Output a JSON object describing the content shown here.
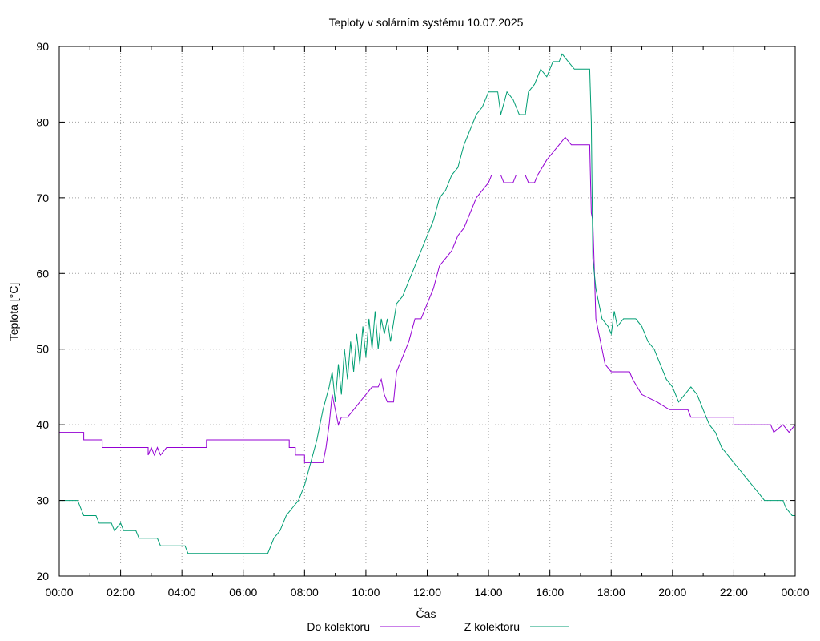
{
  "chart_data": {
    "type": "line",
    "title": "Teploty v solárním systému 10.07.2025",
    "xlabel": "Čas",
    "ylabel": "Teplota [°C]",
    "xlim": [
      0,
      24
    ],
    "ylim": [
      20,
      90
    ],
    "grid": true,
    "legend_position": "bottom",
    "x_ticks": [
      0,
      2,
      4,
      6,
      8,
      10,
      12,
      14,
      16,
      18,
      20,
      22,
      24
    ],
    "x_tick_labels": [
      "00:00",
      "02:00",
      "04:00",
      "06:00",
      "08:00",
      "10:00",
      "12:00",
      "14:00",
      "16:00",
      "18:00",
      "20:00",
      "22:00",
      "00:00"
    ],
    "y_ticks": [
      20,
      30,
      40,
      50,
      60,
      70,
      80,
      90
    ],
    "y_tick_labels": [
      "20",
      "30",
      "40",
      "50",
      "60",
      "70",
      "80",
      "90"
    ],
    "series": [
      {
        "name": "Do kolektoru",
        "color": "#9400d3",
        "points": [
          [
            0.0,
            39
          ],
          [
            0.8,
            39
          ],
          [
            0.8,
            38
          ],
          [
            1.4,
            38
          ],
          [
            1.4,
            37
          ],
          [
            2.9,
            37
          ],
          [
            2.9,
            36
          ],
          [
            3.0,
            37
          ],
          [
            3.1,
            36
          ],
          [
            3.2,
            37
          ],
          [
            3.3,
            36
          ],
          [
            3.5,
            37
          ],
          [
            4.8,
            37
          ],
          [
            4.8,
            38
          ],
          [
            7.5,
            38
          ],
          [
            7.5,
            37
          ],
          [
            7.7,
            37
          ],
          [
            7.7,
            36
          ],
          [
            8.0,
            36
          ],
          [
            8.0,
            35
          ],
          [
            8.6,
            35
          ],
          [
            8.7,
            37
          ],
          [
            8.8,
            40
          ],
          [
            8.9,
            44
          ],
          [
            9.1,
            40
          ],
          [
            9.2,
            41
          ],
          [
            9.4,
            41
          ],
          [
            9.6,
            42
          ],
          [
            9.8,
            43
          ],
          [
            10.0,
            44
          ],
          [
            10.2,
            45
          ],
          [
            10.4,
            45
          ],
          [
            10.5,
            46
          ],
          [
            10.6,
            44
          ],
          [
            10.7,
            43
          ],
          [
            10.9,
            43
          ],
          [
            11.0,
            47
          ],
          [
            11.2,
            49
          ],
          [
            11.4,
            51
          ],
          [
            11.6,
            54
          ],
          [
            11.8,
            54
          ],
          [
            12.0,
            56
          ],
          [
            12.2,
            58
          ],
          [
            12.4,
            61
          ],
          [
            12.6,
            62
          ],
          [
            12.8,
            63
          ],
          [
            13.0,
            65
          ],
          [
            13.2,
            66
          ],
          [
            13.4,
            68
          ],
          [
            13.6,
            70
          ],
          [
            13.8,
            71
          ],
          [
            14.0,
            72
          ],
          [
            14.1,
            73
          ],
          [
            14.4,
            73
          ],
          [
            14.5,
            72
          ],
          [
            14.8,
            72
          ],
          [
            14.9,
            73
          ],
          [
            15.2,
            73
          ],
          [
            15.3,
            72
          ],
          [
            15.5,
            72
          ],
          [
            15.6,
            73
          ],
          [
            15.9,
            75
          ],
          [
            16.1,
            76
          ],
          [
            16.3,
            77
          ],
          [
            16.5,
            78
          ],
          [
            16.7,
            77
          ],
          [
            17.3,
            77
          ],
          [
            17.35,
            68
          ],
          [
            17.4,
            67
          ],
          [
            17.5,
            54
          ],
          [
            17.7,
            50
          ],
          [
            17.8,
            48
          ],
          [
            18.0,
            47
          ],
          [
            18.6,
            47
          ],
          [
            18.7,
            46
          ],
          [
            19.0,
            44
          ],
          [
            19.5,
            43
          ],
          [
            19.9,
            42
          ],
          [
            20.5,
            42
          ],
          [
            20.6,
            41
          ],
          [
            22.0,
            41
          ],
          [
            22.0,
            40
          ],
          [
            23.2,
            40
          ],
          [
            23.3,
            39
          ],
          [
            23.6,
            40
          ],
          [
            23.8,
            39
          ],
          [
            24.0,
            40
          ]
        ]
      },
      {
        "name": "Z kolektoru",
        "color": "#009e73",
        "points": [
          [
            0.0,
            30
          ],
          [
            0.6,
            30
          ],
          [
            0.8,
            28
          ],
          [
            1.2,
            28
          ],
          [
            1.3,
            27
          ],
          [
            1.7,
            27
          ],
          [
            1.8,
            26
          ],
          [
            2.0,
            27
          ],
          [
            2.1,
            26
          ],
          [
            2.5,
            26
          ],
          [
            2.6,
            25
          ],
          [
            3.2,
            25
          ],
          [
            3.3,
            24
          ],
          [
            4.1,
            24
          ],
          [
            4.2,
            23
          ],
          [
            6.8,
            23
          ],
          [
            7.0,
            25
          ],
          [
            7.2,
            26
          ],
          [
            7.4,
            28
          ],
          [
            7.6,
            29
          ],
          [
            7.8,
            30
          ],
          [
            8.0,
            32
          ],
          [
            8.2,
            35
          ],
          [
            8.4,
            38
          ],
          [
            8.6,
            42
          ],
          [
            8.8,
            45
          ],
          [
            8.9,
            47
          ],
          [
            9.0,
            43
          ],
          [
            9.1,
            48
          ],
          [
            9.2,
            44
          ],
          [
            9.3,
            50
          ],
          [
            9.4,
            46
          ],
          [
            9.5,
            51
          ],
          [
            9.6,
            47
          ],
          [
            9.7,
            52
          ],
          [
            9.8,
            48
          ],
          [
            9.9,
            53
          ],
          [
            10.0,
            49
          ],
          [
            10.1,
            54
          ],
          [
            10.2,
            50
          ],
          [
            10.3,
            55
          ],
          [
            10.4,
            50
          ],
          [
            10.5,
            54
          ],
          [
            10.6,
            52
          ],
          [
            10.7,
            54
          ],
          [
            10.8,
            51
          ],
          [
            11.0,
            56
          ],
          [
            11.2,
            57
          ],
          [
            11.4,
            59
          ],
          [
            11.6,
            61
          ],
          [
            11.8,
            63
          ],
          [
            12.0,
            65
          ],
          [
            12.2,
            67
          ],
          [
            12.4,
            70
          ],
          [
            12.6,
            71
          ],
          [
            12.8,
            73
          ],
          [
            13.0,
            74
          ],
          [
            13.2,
            77
          ],
          [
            13.4,
            79
          ],
          [
            13.6,
            81
          ],
          [
            13.8,
            82
          ],
          [
            14.0,
            84
          ],
          [
            14.3,
            84
          ],
          [
            14.4,
            81
          ],
          [
            14.6,
            84
          ],
          [
            14.8,
            83
          ],
          [
            15.0,
            81
          ],
          [
            15.2,
            81
          ],
          [
            15.3,
            84
          ],
          [
            15.5,
            85
          ],
          [
            15.7,
            87
          ],
          [
            15.9,
            86
          ],
          [
            16.1,
            88
          ],
          [
            16.3,
            88
          ],
          [
            16.4,
            89
          ],
          [
            16.6,
            88
          ],
          [
            16.8,
            87
          ],
          [
            17.0,
            87
          ],
          [
            17.2,
            87
          ],
          [
            17.3,
            87
          ],
          [
            17.35,
            80
          ],
          [
            17.4,
            62
          ],
          [
            17.5,
            58
          ],
          [
            17.6,
            56
          ],
          [
            17.7,
            54
          ],
          [
            17.9,
            53
          ],
          [
            18.0,
            52
          ],
          [
            18.1,
            55
          ],
          [
            18.2,
            53
          ],
          [
            18.4,
            54
          ],
          [
            18.8,
            54
          ],
          [
            19.0,
            53
          ],
          [
            19.2,
            51
          ],
          [
            19.4,
            50
          ],
          [
            19.6,
            48
          ],
          [
            19.8,
            46
          ],
          [
            20.0,
            45
          ],
          [
            20.2,
            43
          ],
          [
            20.4,
            44
          ],
          [
            20.6,
            45
          ],
          [
            20.8,
            44
          ],
          [
            21.0,
            42
          ],
          [
            21.2,
            40
          ],
          [
            21.4,
            39
          ],
          [
            21.6,
            37
          ],
          [
            21.8,
            36
          ],
          [
            22.0,
            35
          ],
          [
            22.2,
            34
          ],
          [
            22.4,
            33
          ],
          [
            22.6,
            32
          ],
          [
            22.8,
            31
          ],
          [
            23.0,
            30
          ],
          [
            23.6,
            30
          ],
          [
            23.7,
            29
          ],
          [
            23.9,
            28
          ],
          [
            24.0,
            28
          ]
        ]
      }
    ]
  }
}
